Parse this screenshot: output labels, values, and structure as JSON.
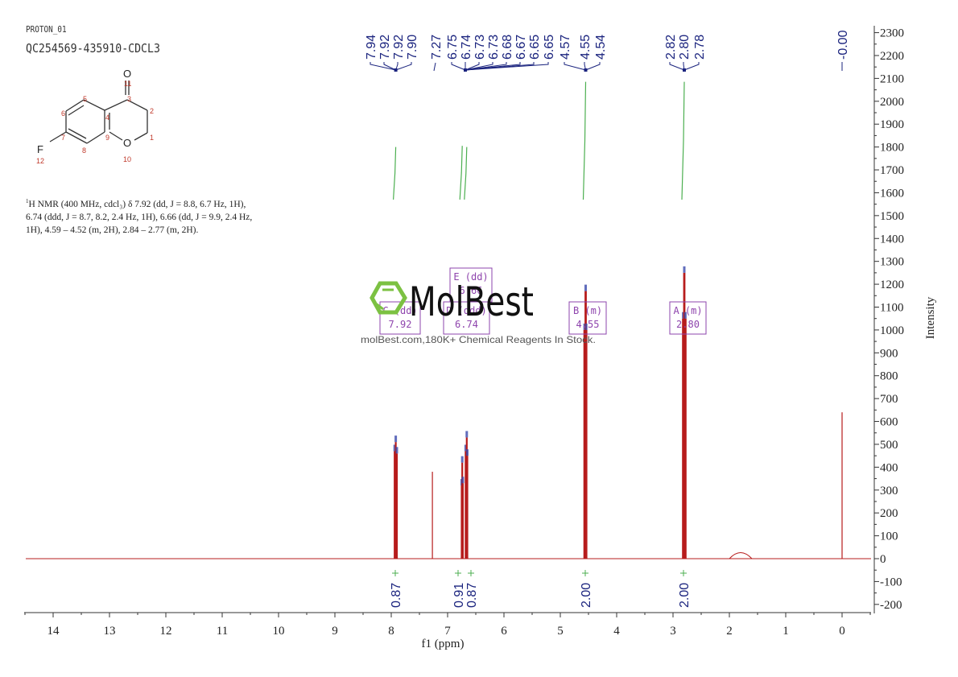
{
  "header": {
    "experiment": "PROTON_01",
    "sample_id": "QC254569-435910-CDCL3"
  },
  "molecule": {
    "atoms": [
      {
        "label": "O",
        "num": "11"
      },
      {
        "label": "O",
        "num": "10"
      },
      {
        "label": "F",
        "num": "12"
      }
    ],
    "carbon_numbers": [
      "1",
      "2",
      "3",
      "4",
      "5",
      "6",
      "7",
      "8",
      "9"
    ]
  },
  "nmr_description": {
    "line1": "H NMR (400 MHz, cdcl₃) δ 7.92 (dd, J = 8.8, 6.7 Hz, 1H),",
    "line2": "6.74 (ddd, J = 8.7, 8.2, 2.4 Hz, 1H), 6.66 (dd, J = 9.9, 2.4 Hz,",
    "line3": "1H), 4.59 – 4.52 (m, 2H), 2.84 – 2.77 (m, 2H).",
    "superscript": "1"
  },
  "watermark": {
    "brand": "MolBest",
    "tagline": "molBest.com,180K+ Chemical Reagents In Stock."
  },
  "colors": {
    "spectrum": "#b71c1c",
    "peak_labels": "#1a237e",
    "integral_curve": "#4caf50",
    "multiplet_box": "#8e44ad",
    "axis": "#333333",
    "logo_green": "#7cc142"
  },
  "chart_data": {
    "type": "line",
    "title": "",
    "xlabel": "f1 (ppm)",
    "ylabel": "Intensity",
    "xlim": [
      14.5,
      -0.5
    ],
    "ylim": [
      -200,
      2300
    ],
    "x_ticks": [
      14,
      13,
      12,
      11,
      10,
      9,
      8,
      7,
      6,
      5,
      4,
      3,
      2,
      1,
      0
    ],
    "y_ticks": [
      2300,
      2200,
      2100,
      2000,
      1900,
      1800,
      1700,
      1600,
      1500,
      1400,
      1300,
      1200,
      1100,
      1000,
      900,
      800,
      700,
      600,
      500,
      400,
      300,
      200,
      100,
      0,
      -100,
      -200
    ],
    "peak_labels": {
      "group1": [
        "7.94",
        "7.92",
        "7.92",
        "7.90"
      ],
      "group2": [
        "7.27"
      ],
      "group3": [
        "6.75",
        "6.74",
        "6.73",
        "6.73",
        "6.68",
        "6.67",
        "6.65",
        "6.65"
      ],
      "group4": [
        "4.57",
        "4.55",
        "4.54"
      ],
      "group5": [
        "2.82",
        "2.80",
        "2.78"
      ],
      "group6": [
        "-0.00"
      ]
    },
    "peaks": [
      {
        "ppm": 7.94,
        "intensity": 470
      },
      {
        "ppm": 7.92,
        "intensity": 510
      },
      {
        "ppm": 7.9,
        "intensity": 460
      },
      {
        "ppm": 7.27,
        "intensity": 380
      },
      {
        "ppm": 6.75,
        "intensity": 320
      },
      {
        "ppm": 6.74,
        "intensity": 420
      },
      {
        "ppm": 6.73,
        "intensity": 330
      },
      {
        "ppm": 6.68,
        "intensity": 470
      },
      {
        "ppm": 6.66,
        "intensity": 530
      },
      {
        "ppm": 6.65,
        "intensity": 450
      },
      {
        "ppm": 4.57,
        "intensity": 1000
      },
      {
        "ppm": 4.55,
        "intensity": 1170
      },
      {
        "ppm": 4.54,
        "intensity": 1000
      },
      {
        "ppm": 2.82,
        "intensity": 1050
      },
      {
        "ppm": 2.8,
        "intensity": 1250
      },
      {
        "ppm": 2.78,
        "intensity": 1050
      },
      {
        "ppm": 1.8,
        "intensity": 25
      },
      {
        "ppm": 0.0,
        "intensity": 640
      }
    ],
    "multiplets": [
      {
        "id": "C",
        "type": "dd",
        "shift": "7.92",
        "ppm": 7.92
      },
      {
        "id": "D",
        "type": "ddd",
        "shift": "6.74",
        "ppm": 6.74
      },
      {
        "id": "E",
        "type": "dd",
        "shift": "6.66",
        "ppm": 6.66
      },
      {
        "id": "B",
        "type": "m",
        "shift": "4.55",
        "ppm": 4.55
      },
      {
        "id": "A",
        "type": "m",
        "shift": "2.80",
        "ppm": 2.8
      }
    ],
    "integrals": [
      {
        "ppm": 7.92,
        "value": "0.87"
      },
      {
        "ppm": 6.74,
        "value": "0.91"
      },
      {
        "ppm": 6.66,
        "value": "0.87"
      },
      {
        "ppm": 4.55,
        "value": "2.00"
      },
      {
        "ppm": 2.8,
        "value": "2.00"
      }
    ]
  }
}
